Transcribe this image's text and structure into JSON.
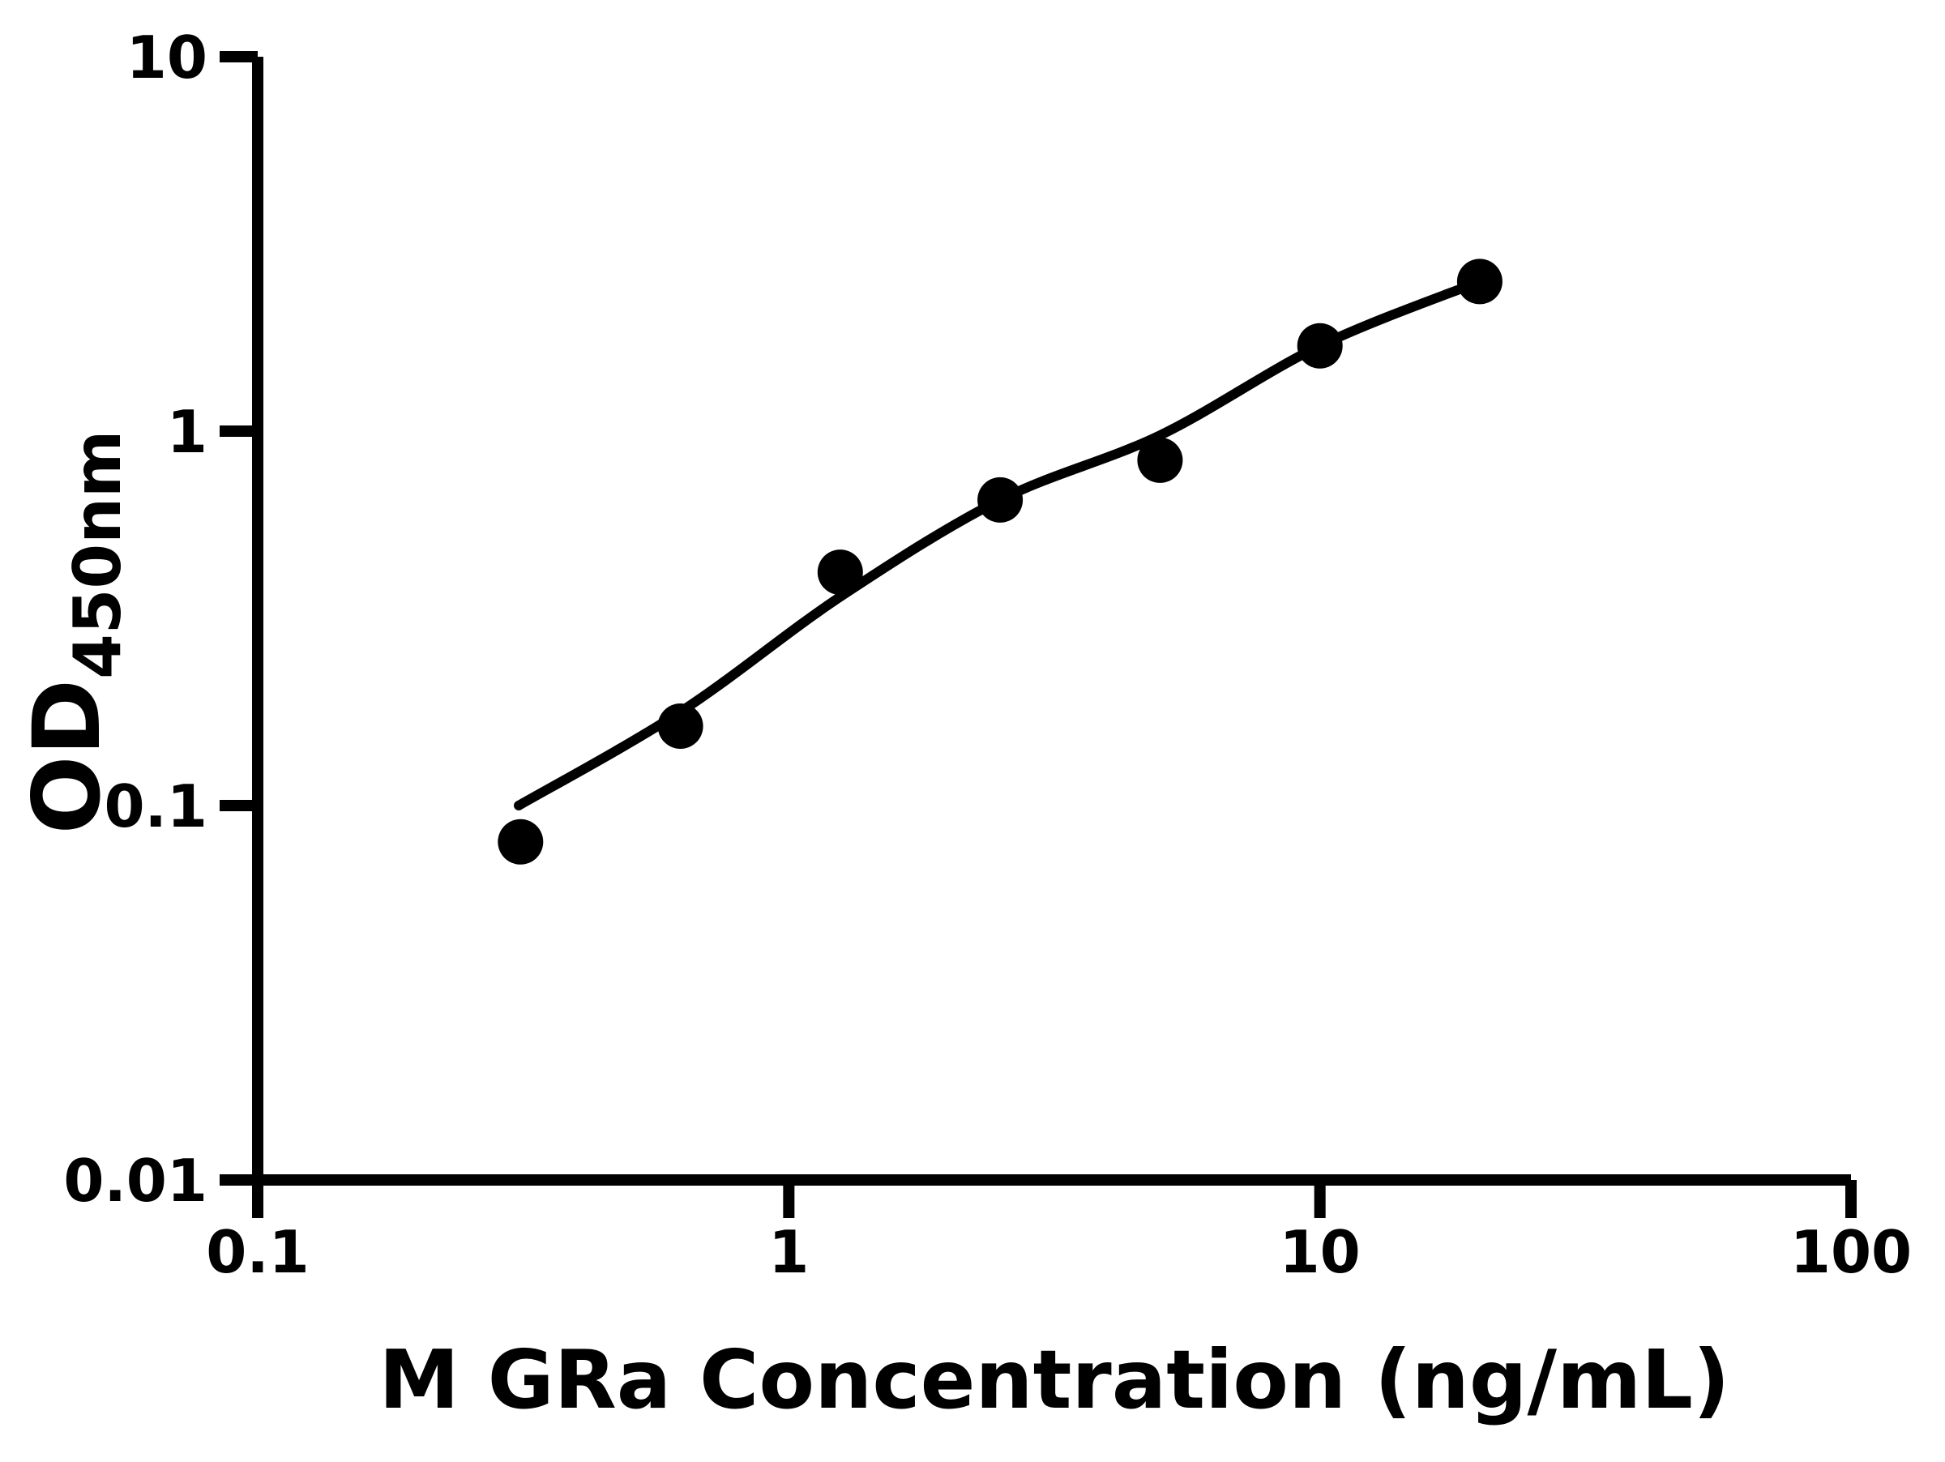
{
  "chart_data": {
    "type": "scatter",
    "title": "",
    "xlabel": "M GRa Concentration (ng/mL)",
    "ylabel_main": "OD",
    "ylabel_sub": "450nm",
    "x_scale": "log",
    "y_scale": "log",
    "xlim": [
      0.1,
      100
    ],
    "ylim": [
      0.01,
      10
    ],
    "grid": false,
    "legend": false,
    "x_ticks": [
      {
        "value": 0.1,
        "label": "0.1"
      },
      {
        "value": 1,
        "label": "1"
      },
      {
        "value": 10,
        "label": "10"
      },
      {
        "value": 100,
        "label": "100"
      }
    ],
    "y_ticks": [
      {
        "value": 0.01,
        "label": "0.01"
      },
      {
        "value": 0.1,
        "label": "0.1"
      },
      {
        "value": 1,
        "label": "1"
      },
      {
        "value": 10,
        "label": "10"
      }
    ],
    "series": [
      {
        "name": "standard-points",
        "marker": "circle",
        "color": "#000000",
        "points": [
          {
            "x": 0.3125,
            "y": 0.08
          },
          {
            "x": 0.625,
            "y": 0.163
          },
          {
            "x": 1.25,
            "y": 0.42
          },
          {
            "x": 2.5,
            "y": 0.655
          },
          {
            "x": 5,
            "y": 0.836
          },
          {
            "x": 10,
            "y": 1.69
          },
          {
            "x": 20,
            "y": 2.51
          }
        ]
      }
    ],
    "fit_curve": {
      "name": "fitted-curve",
      "color": "#000000",
      "points": [
        {
          "x": 0.31,
          "y": 0.1
        },
        {
          "x": 0.625,
          "y": 0.178
        },
        {
          "x": 1.25,
          "y": 0.361
        },
        {
          "x": 2.5,
          "y": 0.655
        },
        {
          "x": 5,
          "y": 0.975
        },
        {
          "x": 10,
          "y": 1.69
        },
        {
          "x": 20,
          "y": 2.51
        }
      ]
    },
    "colors": {
      "foreground": "#000000",
      "background": "#ffffff"
    }
  }
}
